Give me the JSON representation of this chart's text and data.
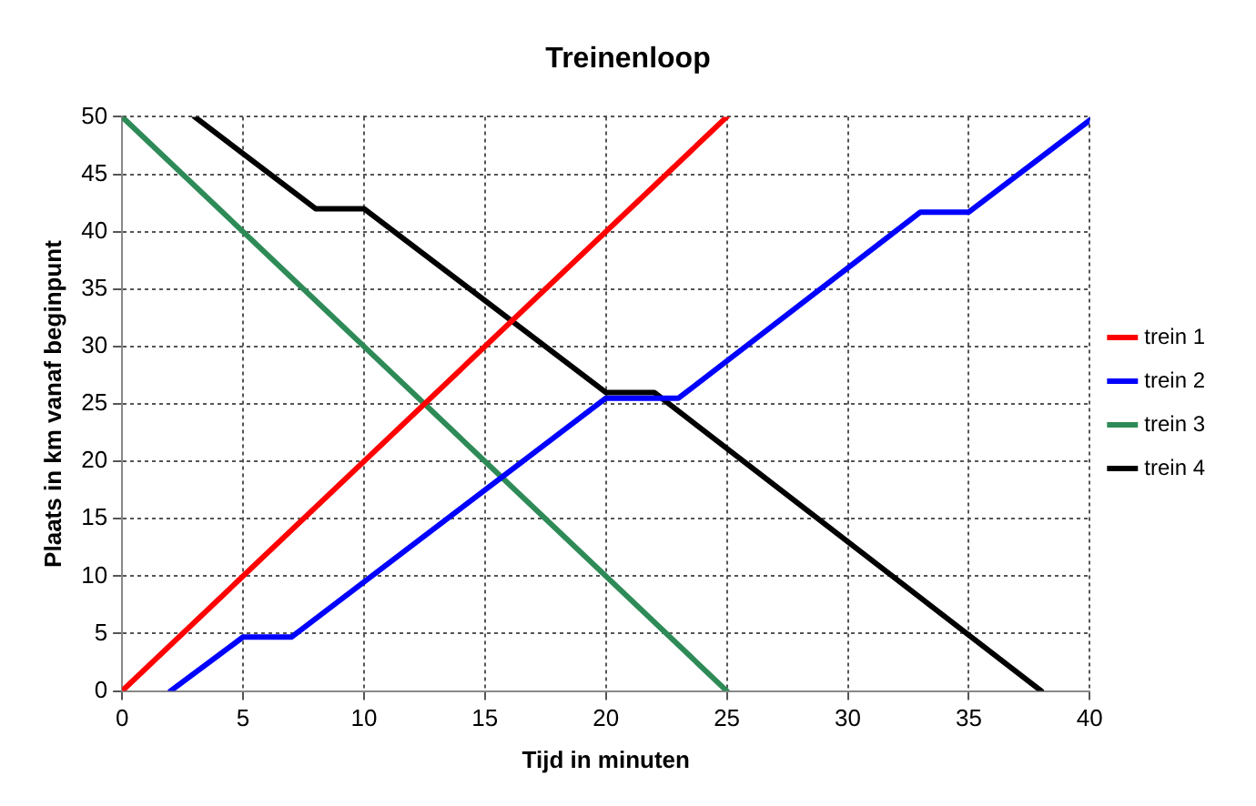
{
  "chart_data": {
    "type": "line",
    "title": "Treinenloop",
    "xlabel": "Tijd in minuten",
    "ylabel": "Plaats in km vanaf beginpunt",
    "xlim": [
      0,
      40
    ],
    "xticks": [
      0,
      5,
      10,
      15,
      20,
      25,
      30,
      35,
      40
    ],
    "ylim": [
      0,
      50
    ],
    "yticks": [
      0,
      5,
      10,
      15,
      20,
      25,
      30,
      35,
      40,
      45,
      50
    ],
    "grid": true,
    "legend": "right",
    "marker": "none",
    "line_style": "solid",
    "series": [
      {
        "name": "trein 1",
        "color": "#ff0000",
        "x": [
          0,
          25
        ],
        "values": [
          0,
          50
        ]
      },
      {
        "name": "trein 2",
        "color": "#0000ff",
        "x": [
          2,
          5,
          7,
          20,
          23,
          33,
          35,
          40
        ],
        "values": [
          0,
          4.7,
          4.7,
          25.5,
          25.5,
          41.7,
          41.7,
          49.7
        ]
      },
      {
        "name": "trein 3",
        "color": "#2e8b57",
        "x": [
          0,
          25
        ],
        "values": [
          50,
          0
        ]
      },
      {
        "name": "trein 4",
        "color": "#000000",
        "x": [
          3,
          8,
          10,
          20,
          22,
          38
        ],
        "values": [
          50,
          42,
          42,
          26,
          26,
          0
        ]
      }
    ]
  }
}
